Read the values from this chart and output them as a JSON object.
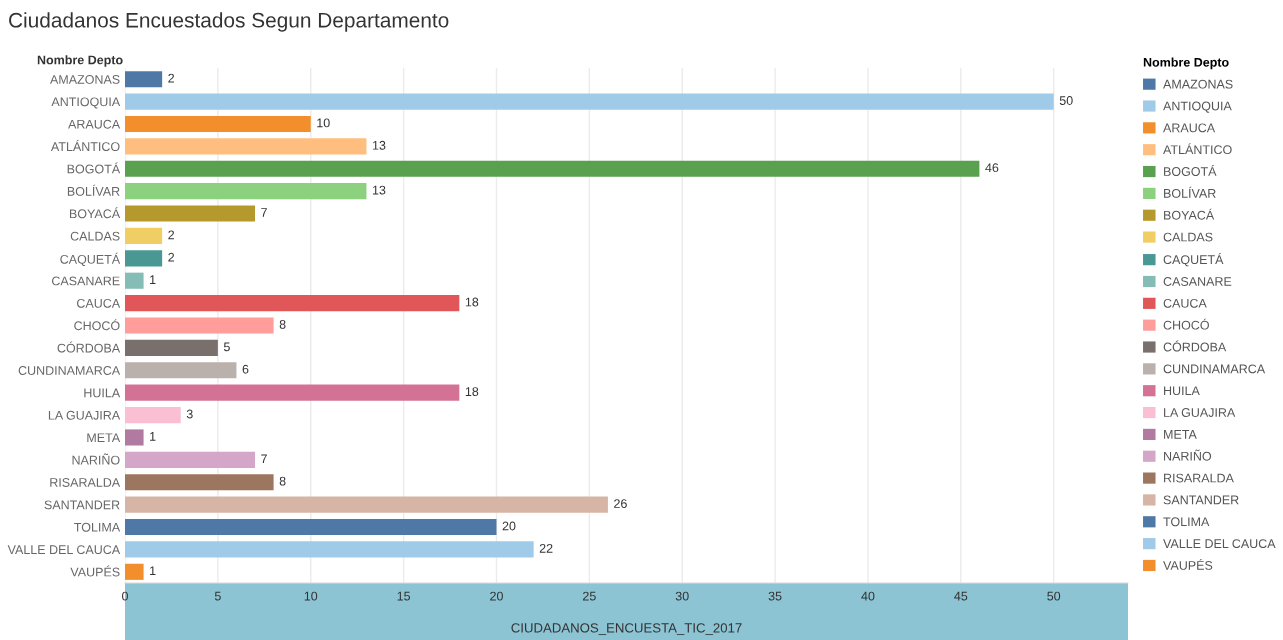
{
  "chart_data": {
    "type": "bar",
    "orientation": "horizontal",
    "title": "Ciudadanos Encuestados Segun Departamento",
    "ylabel": "Nombre Depto",
    "legend_title": "Nombre Depto",
    "xlabel": "CIUDADANOS_ENCUESTA_TIC_2017",
    "categories": [
      "AMAZONAS",
      "ANTIOQUIA",
      "ARAUCA",
      "ATLÁNTICO",
      "BOGOTÁ",
      "BOLÍVAR",
      "BOYACÁ",
      "CALDAS",
      "CAQUETÁ",
      "CASANARE",
      "CAUCA",
      "CHOCÓ",
      "CÓRDOBA",
      "CUNDINAMARCA",
      "HUILA",
      "LA GUAJIRA",
      "META",
      "NARIÑO",
      "RISARALDA",
      "SANTANDER",
      "TOLIMA",
      "VALLE DEL CAUCA",
      "VAUPÉS"
    ],
    "series": [
      {
        "name": "AMAZONAS",
        "color": "#4e79a7",
        "values": [
          2,
          null,
          null,
          null,
          null,
          null,
          null,
          null,
          null,
          null,
          null,
          null,
          null,
          null,
          null,
          null,
          null,
          null,
          null,
          null,
          null,
          null,
          null
        ]
      },
      {
        "name": "ANTIOQUIA",
        "color": "#a0cbe8",
        "values": [
          null,
          50,
          null,
          null,
          null,
          null,
          null,
          null,
          null,
          null,
          null,
          null,
          null,
          null,
          null,
          null,
          null,
          null,
          null,
          null,
          null,
          null,
          null
        ]
      },
      {
        "name": "ARAUCA",
        "color": "#f28e2b",
        "values": [
          null,
          null,
          10,
          null,
          null,
          null,
          null,
          null,
          null,
          null,
          null,
          null,
          null,
          null,
          null,
          null,
          null,
          null,
          null,
          null,
          null,
          null,
          null
        ]
      },
      {
        "name": "ATLÁNTICO",
        "color": "#ffbe7d",
        "values": [
          null,
          null,
          null,
          13,
          null,
          null,
          null,
          null,
          null,
          null,
          null,
          null,
          null,
          null,
          null,
          null,
          null,
          null,
          null,
          null,
          null,
          null,
          null
        ]
      },
      {
        "name": "BOGOTÁ",
        "color": "#59a14f",
        "values": [
          null,
          null,
          null,
          null,
          46,
          null,
          null,
          null,
          null,
          null,
          null,
          null,
          null,
          null,
          null,
          null,
          null,
          null,
          null,
          null,
          null,
          null,
          null
        ]
      },
      {
        "name": "BOLÍVAR",
        "color": "#8cd17d",
        "values": [
          null,
          null,
          null,
          null,
          null,
          13,
          null,
          null,
          null,
          null,
          null,
          null,
          null,
          null,
          null,
          null,
          null,
          null,
          null,
          null,
          null,
          null,
          null
        ]
      },
      {
        "name": "BOYACÁ",
        "color": "#b6992d",
        "values": [
          null,
          null,
          null,
          null,
          null,
          null,
          7,
          null,
          null,
          null,
          null,
          null,
          null,
          null,
          null,
          null,
          null,
          null,
          null,
          null,
          null,
          null,
          null
        ]
      },
      {
        "name": "CALDAS",
        "color": "#f1ce63",
        "values": [
          null,
          null,
          null,
          null,
          null,
          null,
          null,
          2,
          null,
          null,
          null,
          null,
          null,
          null,
          null,
          null,
          null,
          null,
          null,
          null,
          null,
          null,
          null
        ]
      },
      {
        "name": "CAQUETÁ",
        "color": "#499894",
        "values": [
          null,
          null,
          null,
          null,
          null,
          null,
          null,
          null,
          2,
          null,
          null,
          null,
          null,
          null,
          null,
          null,
          null,
          null,
          null,
          null,
          null,
          null,
          null
        ]
      },
      {
        "name": "CASANARE",
        "color": "#86bcb6",
        "values": [
          null,
          null,
          null,
          null,
          null,
          null,
          null,
          null,
          null,
          1,
          null,
          null,
          null,
          null,
          null,
          null,
          null,
          null,
          null,
          null,
          null,
          null,
          null
        ]
      },
      {
        "name": "CAUCA",
        "color": "#e15759",
        "values": [
          null,
          null,
          null,
          null,
          null,
          null,
          null,
          null,
          null,
          null,
          18,
          null,
          null,
          null,
          null,
          null,
          null,
          null,
          null,
          null,
          null,
          null,
          null
        ]
      },
      {
        "name": "CHOCÓ",
        "color": "#ff9d9a",
        "values": [
          null,
          null,
          null,
          null,
          null,
          null,
          null,
          null,
          null,
          null,
          null,
          8,
          null,
          null,
          null,
          null,
          null,
          null,
          null,
          null,
          null,
          null,
          null
        ]
      },
      {
        "name": "CÓRDOBA",
        "color": "#79706e",
        "values": [
          null,
          null,
          null,
          null,
          null,
          null,
          null,
          null,
          null,
          null,
          null,
          null,
          5,
          null,
          null,
          null,
          null,
          null,
          null,
          null,
          null,
          null,
          null
        ]
      },
      {
        "name": "CUNDINAMARCA",
        "color": "#bab0ac",
        "values": [
          null,
          null,
          null,
          null,
          null,
          null,
          null,
          null,
          null,
          null,
          null,
          null,
          null,
          6,
          null,
          null,
          null,
          null,
          null,
          null,
          null,
          null,
          null
        ]
      },
      {
        "name": "HUILA",
        "color": "#d37295",
        "values": [
          null,
          null,
          null,
          null,
          null,
          null,
          null,
          null,
          null,
          null,
          null,
          null,
          null,
          null,
          18,
          null,
          null,
          null,
          null,
          null,
          null,
          null,
          null
        ]
      },
      {
        "name": "LA GUAJIRA",
        "color": "#fabfd2",
        "values": [
          null,
          null,
          null,
          null,
          null,
          null,
          null,
          null,
          null,
          null,
          null,
          null,
          null,
          null,
          null,
          3,
          null,
          null,
          null,
          null,
          null,
          null,
          null
        ]
      },
      {
        "name": "META",
        "color": "#b07aa1",
        "values": [
          null,
          null,
          null,
          null,
          null,
          null,
          null,
          null,
          null,
          null,
          null,
          null,
          null,
          null,
          null,
          null,
          1,
          null,
          null,
          null,
          null,
          null,
          null
        ]
      },
      {
        "name": "NARIÑO",
        "color": "#d4a6c8",
        "values": [
          null,
          null,
          null,
          null,
          null,
          null,
          null,
          null,
          null,
          null,
          null,
          null,
          null,
          null,
          null,
          null,
          null,
          7,
          null,
          null,
          null,
          null,
          null
        ]
      },
      {
        "name": "RISARALDA",
        "color": "#9d7660",
        "values": [
          null,
          null,
          null,
          null,
          null,
          null,
          null,
          null,
          null,
          null,
          null,
          null,
          null,
          null,
          null,
          null,
          null,
          null,
          8,
          null,
          null,
          null,
          null
        ]
      },
      {
        "name": "SANTANDER",
        "color": "#d7b5a6",
        "values": [
          null,
          null,
          null,
          null,
          null,
          null,
          null,
          null,
          null,
          null,
          null,
          null,
          null,
          null,
          null,
          null,
          null,
          null,
          null,
          26,
          null,
          null,
          null
        ]
      },
      {
        "name": "TOLIMA",
        "color": "#4e79a7",
        "values": [
          null,
          null,
          null,
          null,
          null,
          null,
          null,
          null,
          null,
          null,
          null,
          null,
          null,
          null,
          null,
          null,
          null,
          null,
          null,
          null,
          20,
          null,
          null
        ]
      },
      {
        "name": "VALLE DEL CAUCA",
        "color": "#a0cbe8",
        "values": [
          null,
          null,
          null,
          null,
          null,
          null,
          null,
          null,
          null,
          null,
          null,
          null,
          null,
          null,
          null,
          null,
          null,
          null,
          null,
          null,
          null,
          22,
          null
        ]
      },
      {
        "name": "VAUPÉS",
        "color": "#f28e2b",
        "values": [
          null,
          null,
          null,
          null,
          null,
          null,
          null,
          null,
          null,
          null,
          null,
          null,
          null,
          null,
          null,
          null,
          null,
          null,
          null,
          null,
          null,
          null,
          1
        ]
      }
    ],
    "xlim": [
      0,
      54
    ],
    "xticks": [
      0,
      5,
      10,
      15,
      20,
      25,
      30,
      35,
      40,
      45,
      50
    ],
    "grid": "x",
    "data_labels": true,
    "legend": "right"
  }
}
